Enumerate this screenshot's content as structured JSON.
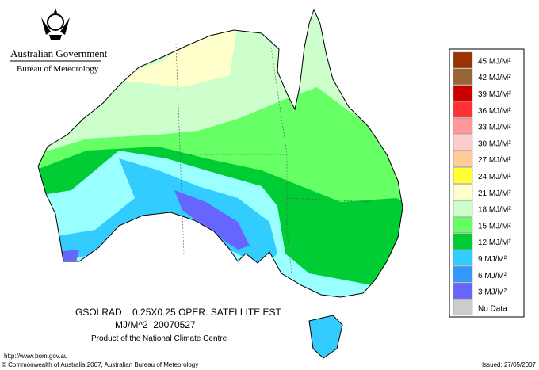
{
  "header": {
    "government": "Australian Government",
    "agency": "Bureau of Meteorology"
  },
  "title": {
    "line1": "GSOLRAD    0.25X0.25 OPER. SATELLITE EST",
    "line2": "MJ/M^2  20070527",
    "line3": "Product of the National Climate Centre"
  },
  "legend": {
    "items": [
      {
        "label": "45 MJ/M²",
        "color": "#993300"
      },
      {
        "label": "42 MJ/M²",
        "color": "#996633"
      },
      {
        "label": "39 MJ/M²",
        "color": "#cc0000"
      },
      {
        "label": "36 MJ/M²",
        "color": "#ff3333"
      },
      {
        "label": "33 MJ/M²",
        "color": "#ff9999"
      },
      {
        "label": "30 MJ/M²",
        "color": "#ffcccc"
      },
      {
        "label": "27 MJ/M²",
        "color": "#ffcc99"
      },
      {
        "label": "24 MJ/M²",
        "color": "#ffff33"
      },
      {
        "label": "21 MJ/M²",
        "color": "#ffffcc"
      },
      {
        "label": "18 MJ/M²",
        "color": "#ccffcc"
      },
      {
        "label": "15 MJ/M²",
        "color": "#66ff66"
      },
      {
        "label": "12 MJ/M²",
        "color": "#00cc33"
      },
      {
        "label": "9 MJ/M²",
        "color": "#33ccff"
      },
      {
        "label": "6 MJ/M²",
        "color": "#3399ff"
      },
      {
        "label": "3 MJ/M²",
        "color": "#6666ff"
      },
      {
        "label": "No Data",
        "color": "#cccccc"
      }
    ]
  },
  "footer": {
    "url": "http://www.bom.gov.au",
    "copyright": "© Commonwealth of Australia 2007, Australian Bureau of Meteorology",
    "issued": "Issued: 27/05/2007"
  }
}
